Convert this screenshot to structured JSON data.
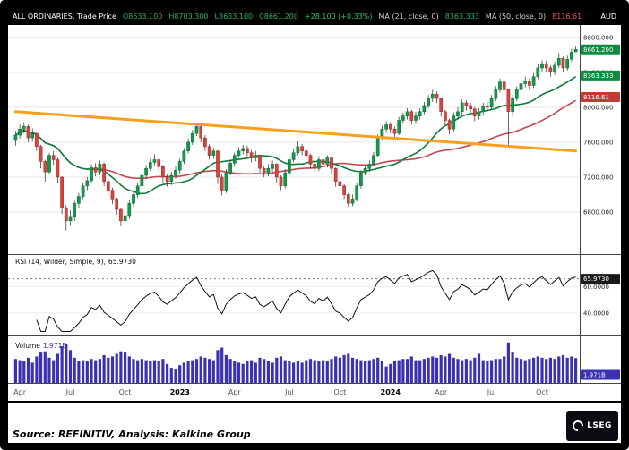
{
  "header": {
    "title": "ALL ORDINARIES, Trade Price",
    "open": "O8633.100",
    "high": "H8703.300",
    "low": "L8633.100",
    "close": "C8661.200",
    "change": "+28.100 (+0.33%)",
    "ma21_label": "MA (21, close, 0)",
    "ma21_value": "8363.333",
    "ma50_label": "MA (50, close, 0)",
    "ma50_value": "8116.61",
    "currency": "AUD"
  },
  "colors": {
    "header_green": "#2eae64",
    "header_change_green": "#31c45e",
    "header_red": "#f0554b",
    "grid": "#e6e6e6",
    "candle_up": "#129a4c",
    "candle_up_border": "#0a6b33",
    "candle_down": "#d8433c",
    "candle_down_border": "#9c2b26",
    "badge_green": "#0e8a42",
    "badge_red": "#c43b36"
  },
  "source": {
    "text": "Source: REFINITIV, Analysis: Kalkine Group",
    "logo_text": "LSEG"
  },
  "chart_data": {
    "type": "candlestick",
    "title": "ALL ORDINARIES, Trade Price",
    "interval": "weekly",
    "currency": "AUD",
    "x_span": "Apr 2022 - Nov 2024",
    "price_domain": [
      6350,
      8900
    ],
    "price_ticks": [
      {
        "value": 8800,
        "label": "8800.000"
      },
      {
        "value": 8400,
        "label": "8400.000"
      },
      {
        "value": 8000,
        "label": "8000.000"
      },
      {
        "value": 7600,
        "label": "7600.000"
      },
      {
        "value": 7200,
        "label": "7200.000"
      },
      {
        "value": 6800,
        "label": "6800.000"
      }
    ],
    "price_badges": [
      {
        "value": 8661.2,
        "text": "8661.200",
        "color": "#0e8a42"
      },
      {
        "value": 8363.333,
        "text": "8363.333",
        "color": "#0e8a42"
      },
      {
        "value": 8116.61,
        "text": "8116.61",
        "color": "#c43b36"
      }
    ],
    "x_ticks": [
      {
        "label": "Apr",
        "index": 1
      },
      {
        "label": "Jul",
        "index": 13
      },
      {
        "label": "Oct",
        "index": 26
      },
      {
        "label": "2023",
        "index": 39,
        "year": true
      },
      {
        "label": "Apr",
        "index": 52
      },
      {
        "label": "Jul",
        "index": 65
      },
      {
        "label": "Oct",
        "index": 77
      },
      {
        "label": "2024",
        "index": 89,
        "year": true
      },
      {
        "label": "Apr",
        "index": 101
      },
      {
        "label": "Jul",
        "index": 113
      },
      {
        "label": "Oct",
        "index": 125
      }
    ],
    "overlays": [
      {
        "name": "MA21",
        "type": "sma",
        "period": 21,
        "color": "#0e7c3a",
        "last_value": 8363.333
      },
      {
        "name": "MA50",
        "type": "sma",
        "period": 50,
        "color": "#c2474f",
        "last_value": 8116.61
      }
    ],
    "trendline": {
      "from_index": 0,
      "from_value": 7950,
      "to_index": 133,
      "to_value": 7500,
      "color": "#f8a01e"
    },
    "rsi": {
      "label": "RSI (14, Wilder, Simple, 9),",
      "last_value_text": "65.9730",
      "period": 14,
      "method": "Wilder",
      "last_value": 65.973,
      "domain": [
        25,
        82
      ],
      "ticks": [
        {
          "value": 60,
          "label": "60.0000"
        },
        {
          "value": 40,
          "label": "40.0000"
        }
      ],
      "dashed_level": 65.973,
      "badge": {
        "text": "65.9730",
        "color": "#1a1a1a"
      }
    },
    "volume": {
      "label": "Volume",
      "last_value_text": "1.971B",
      "last_value": 1.971,
      "unit": "B",
      "domain": [
        0,
        3.4
      ],
      "color": "#3b31b5",
      "badge": {
        "text": "1.971B",
        "color": "#3b31b5"
      }
    },
    "candles": [
      [
        7620,
        7730,
        7560,
        7680,
        1.9
      ],
      [
        7680,
        7800,
        7640,
        7750,
        1.8
      ],
      [
        7750,
        7830,
        7700,
        7780,
        1.7
      ],
      [
        7780,
        7800,
        7600,
        7650,
        2.0
      ],
      [
        7650,
        7760,
        7610,
        7700,
        1.6
      ],
      [
        7700,
        7720,
        7500,
        7550,
        2.1
      ],
      [
        7550,
        7570,
        7300,
        7380,
        2.4
      ],
      [
        7380,
        7400,
        7150,
        7260,
        2.5
      ],
      [
        7260,
        7480,
        7230,
        7450,
        2.0
      ],
      [
        7450,
        7500,
        7340,
        7400,
        1.8
      ],
      [
        7400,
        7420,
        7130,
        7200,
        2.3
      ],
      [
        7200,
        7210,
        6780,
        6850,
        2.9
      ],
      [
        6850,
        6880,
        6590,
        6700,
        3.1
      ],
      [
        6700,
        6820,
        6640,
        6750,
        2.6
      ],
      [
        6750,
        6930,
        6700,
        6900,
        2.0
      ],
      [
        6900,
        7020,
        6850,
        6980,
        1.7
      ],
      [
        6980,
        7140,
        6950,
        7100,
        1.8
      ],
      [
        7100,
        7200,
        7050,
        7160,
        1.7
      ],
      [
        7160,
        7350,
        7130,
        7310,
        1.9
      ],
      [
        7310,
        7360,
        7210,
        7260,
        1.8
      ],
      [
        7260,
        7390,
        7220,
        7350,
        1.9
      ],
      [
        7350,
        7370,
        7100,
        7150,
        2.2
      ],
      [
        7150,
        7180,
        6990,
        7050,
        2.0
      ],
      [
        7050,
        7080,
        6890,
        6950,
        2.1
      ],
      [
        6950,
        6970,
        6770,
        6830,
        2.3
      ],
      [
        6830,
        6850,
        6640,
        6700,
        2.5
      ],
      [
        6700,
        6810,
        6610,
        6760,
        2.4
      ],
      [
        6760,
        6940,
        6720,
        6900,
        2.1
      ],
      [
        6900,
        7040,
        6860,
        7000,
        1.9
      ],
      [
        7000,
        7140,
        6960,
        7100,
        1.8
      ],
      [
        7100,
        7260,
        7070,
        7220,
        1.9
      ],
      [
        7220,
        7340,
        7180,
        7300,
        1.8
      ],
      [
        7300,
        7410,
        7270,
        7370,
        1.7
      ],
      [
        7370,
        7460,
        7330,
        7400,
        1.8
      ],
      [
        7400,
        7430,
        7270,
        7320,
        1.7
      ],
      [
        7320,
        7340,
        7140,
        7200,
        1.9
      ],
      [
        7200,
        7230,
        7090,
        7150,
        1.5
      ],
      [
        7150,
        7260,
        7110,
        7220,
        1.2
      ],
      [
        7220,
        7320,
        7180,
        7280,
        1.1
      ],
      [
        7280,
        7410,
        7240,
        7380,
        1.4
      ],
      [
        7380,
        7530,
        7350,
        7500,
        1.6
      ],
      [
        7500,
        7640,
        7470,
        7600,
        1.7
      ],
      [
        7600,
        7740,
        7570,
        7700,
        1.8
      ],
      [
        7700,
        7810,
        7670,
        7780,
        1.9
      ],
      [
        7780,
        7800,
        7600,
        7650,
        2.1
      ],
      [
        7650,
        7680,
        7500,
        7550,
        2.0
      ],
      [
        7550,
        7580,
        7400,
        7450,
        1.9
      ],
      [
        7450,
        7540,
        7410,
        7500,
        1.8
      ],
      [
        7500,
        7510,
        7120,
        7200,
        2.6
      ],
      [
        7200,
        7230,
        6990,
        7050,
        2.8
      ],
      [
        7050,
        7290,
        7020,
        7250,
        2.2
      ],
      [
        7250,
        7400,
        7220,
        7360,
        1.9
      ],
      [
        7360,
        7480,
        7330,
        7450,
        1.7
      ],
      [
        7450,
        7540,
        7420,
        7500,
        1.6
      ],
      [
        7500,
        7570,
        7460,
        7530,
        1.5
      ],
      [
        7530,
        7560,
        7440,
        7480,
        1.7
      ],
      [
        7480,
        7510,
        7370,
        7420,
        1.8
      ],
      [
        7420,
        7500,
        7380,
        7450,
        1.6
      ],
      [
        7450,
        7460,
        7250,
        7300,
        2.0
      ],
      [
        7300,
        7330,
        7200,
        7250,
        1.9
      ],
      [
        7250,
        7350,
        7210,
        7300,
        1.7
      ],
      [
        7300,
        7390,
        7260,
        7350,
        1.6
      ],
      [
        7350,
        7360,
        7140,
        7200,
        2.0
      ],
      [
        7200,
        7220,
        7050,
        7100,
        2.1
      ],
      [
        7100,
        7290,
        7070,
        7250,
        1.8
      ],
      [
        7250,
        7440,
        7220,
        7400,
        1.7
      ],
      [
        7400,
        7520,
        7370,
        7480,
        1.6
      ],
      [
        7480,
        7610,
        7450,
        7550,
        1.7
      ],
      [
        7550,
        7580,
        7450,
        7500,
        1.6
      ],
      [
        7500,
        7530,
        7390,
        7450,
        1.8
      ],
      [
        7450,
        7470,
        7300,
        7350,
        1.9
      ],
      [
        7350,
        7380,
        7250,
        7300,
        1.8
      ],
      [
        7300,
        7440,
        7270,
        7400,
        1.7
      ],
      [
        7400,
        7430,
        7300,
        7350,
        1.8
      ],
      [
        7350,
        7450,
        7310,
        7420,
        1.7
      ],
      [
        7420,
        7430,
        7240,
        7300,
        1.9
      ],
      [
        7300,
        7310,
        7090,
        7150,
        2.1
      ],
      [
        7150,
        7190,
        7050,
        7100,
        2.0
      ],
      [
        7100,
        7120,
        6950,
        7000,
        2.2
      ],
      [
        7000,
        7020,
        6860,
        6900,
        2.3
      ],
      [
        6900,
        7000,
        6870,
        6950,
        2.0
      ],
      [
        6950,
        7140,
        6920,
        7100,
        1.9
      ],
      [
        7100,
        7280,
        7070,
        7250,
        1.8
      ],
      [
        7250,
        7340,
        7220,
        7300,
        1.7
      ],
      [
        7300,
        7390,
        7260,
        7350,
        1.8
      ],
      [
        7350,
        7490,
        7320,
        7450,
        1.9
      ],
      [
        7450,
        7690,
        7430,
        7650,
        2.0
      ],
      [
        7650,
        7790,
        7620,
        7750,
        1.7
      ],
      [
        7750,
        7840,
        7710,
        7800,
        1.3
      ],
      [
        7800,
        7830,
        7700,
        7750,
        1.5
      ],
      [
        7750,
        7780,
        7650,
        7700,
        1.7
      ],
      [
        7700,
        7890,
        7680,
        7850,
        1.8
      ],
      [
        7850,
        7940,
        7810,
        7900,
        1.9
      ],
      [
        7900,
        7990,
        7860,
        7950,
        1.9
      ],
      [
        7950,
        7970,
        7800,
        7850,
        2.1
      ],
      [
        7850,
        7950,
        7810,
        7900,
        1.8
      ],
      [
        7900,
        7990,
        7860,
        7950,
        1.8
      ],
      [
        7950,
        8060,
        7920,
        8020,
        1.9
      ],
      [
        8020,
        8140,
        7990,
        8100,
        2.0
      ],
      [
        8100,
        8200,
        8060,
        8150,
        2.1
      ],
      [
        8150,
        8180,
        8050,
        8100,
        2.0
      ],
      [
        8100,
        8110,
        7890,
        7950,
        2.2
      ],
      [
        7950,
        7970,
        7790,
        7850,
        2.1
      ],
      [
        7850,
        7870,
        7690,
        7750,
        2.3
      ],
      [
        7750,
        7940,
        7720,
        7900,
        2.0
      ],
      [
        7900,
        8000,
        7860,
        7950,
        1.9
      ],
      [
        7950,
        8090,
        7920,
        8050,
        1.8
      ],
      [
        8050,
        8080,
        7960,
        8020,
        1.9
      ],
      [
        8020,
        8050,
        7930,
        7980,
        1.8
      ],
      [
        7980,
        8000,
        7840,
        7900,
        2.0
      ],
      [
        7900,
        7990,
        7860,
        7950,
        2.3
      ],
      [
        7950,
        8050,
        7910,
        8010,
        1.8
      ],
      [
        8010,
        8060,
        7950,
        8000,
        1.7
      ],
      [
        8000,
        8140,
        7970,
        8100,
        1.8
      ],
      [
        8100,
        8240,
        8070,
        8200,
        1.9
      ],
      [
        8200,
        8330,
        8170,
        8290,
        1.9
      ],
      [
        8290,
        8310,
        8140,
        8200,
        2.1
      ],
      [
        8200,
        8210,
        7540,
        7950,
        3.2
      ],
      [
        7950,
        8140,
        7900,
        8100,
        2.4
      ],
      [
        8100,
        8240,
        8070,
        8200,
        2.0
      ],
      [
        8200,
        8300,
        8160,
        8270,
        1.9
      ],
      [
        8270,
        8350,
        8230,
        8300,
        1.8
      ],
      [
        8300,
        8330,
        8200,
        8250,
        1.9
      ],
      [
        8250,
        8390,
        8220,
        8350,
        2.0
      ],
      [
        8350,
        8490,
        8320,
        8450,
        2.1
      ],
      [
        8450,
        8540,
        8410,
        8500,
        2.0
      ],
      [
        8500,
        8530,
        8400,
        8450,
        1.9
      ],
      [
        8450,
        8480,
        8350,
        8400,
        2.0
      ],
      [
        8400,
        8520,
        8370,
        8480,
        1.9
      ],
      [
        8480,
        8620,
        8450,
        8560,
        2.1
      ],
      [
        8560,
        8580,
        8400,
        8450,
        2.2
      ],
      [
        8450,
        8590,
        8420,
        8550,
        2.0
      ],
      [
        8550,
        8670,
        8520,
        8630,
        2.1
      ],
      [
        8633,
        8703,
        8633,
        8661,
        1.97
      ]
    ]
  }
}
